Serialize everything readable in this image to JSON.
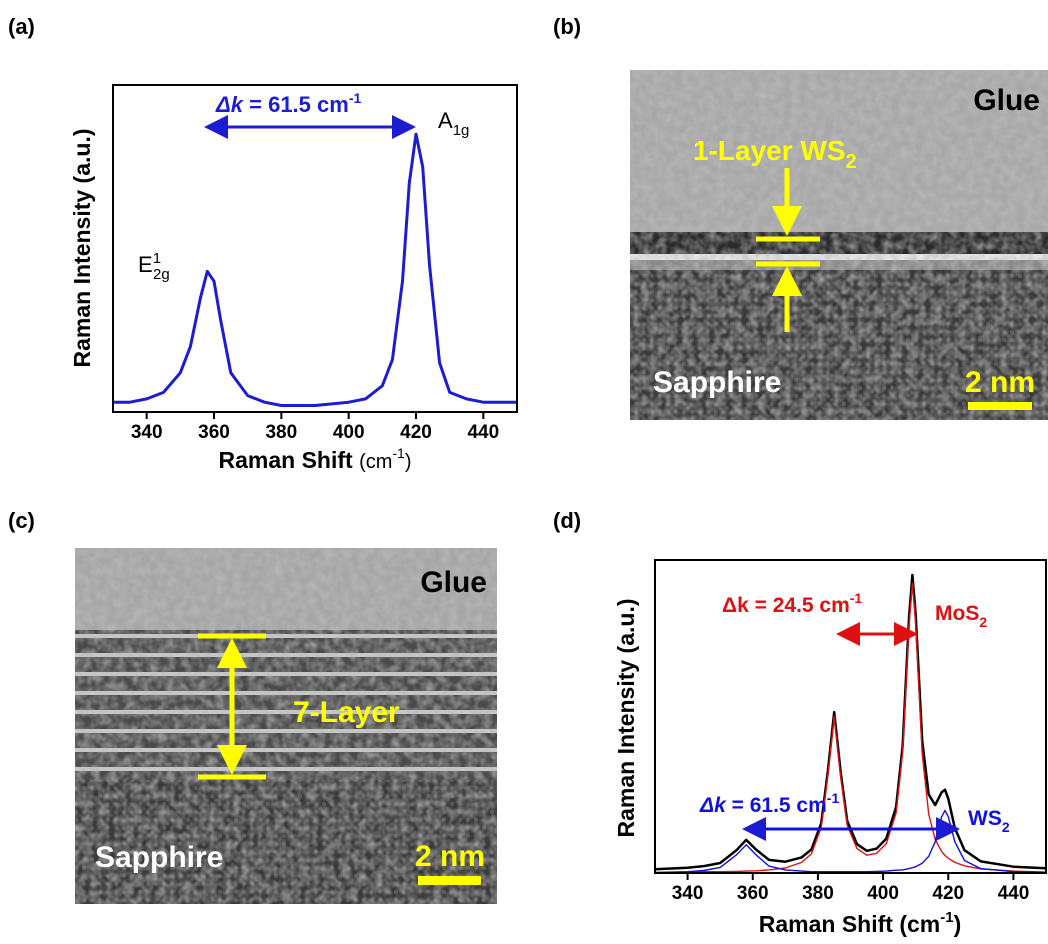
{
  "panel_labels": [
    "(a)",
    "(b)",
    "(c)",
    "(d)"
  ],
  "chart_data": [
    {
      "type": "line",
      "xlabel": [
        "Raman Shift ",
        "(cm",
        "-1",
        ")"
      ],
      "ylabel": "Raman Intensity (a.u.)",
      "x": [
        330,
        335,
        340,
        345,
        350,
        353,
        356,
        358,
        360,
        362,
        365,
        370,
        375,
        380,
        390,
        400,
        405,
        410,
        413,
        416,
        418,
        420,
        422,
        424,
        427,
        430,
        435,
        440,
        445,
        450
      ],
      "values": [
        3,
        3,
        4,
        6,
        12,
        20,
        35,
        43,
        40,
        28,
        12,
        5,
        3,
        2,
        2,
        3,
        4,
        8,
        16,
        40,
        70,
        85,
        75,
        45,
        15,
        6,
        4,
        3,
        3,
        3
      ],
      "color": "#1c1cd2",
      "xlim": [
        330,
        450
      ],
      "ylim": [
        0,
        100
      ],
      "xticks": [
        340,
        360,
        380,
        400,
        420,
        440
      ],
      "annotations": [
        {
          "parts": [
            "Δk",
            " = 61.5 cm",
            "-1"
          ]
        },
        {
          "parts": [
            "A",
            "1g"
          ]
        },
        {
          "parts": [
            "E",
            "1",
            "2g"
          ]
        }
      ]
    },
    {
      "type": "line",
      "xlabel": [
        "Raman Shift (cm",
        "-1",
        ")"
      ],
      "ylabel": "Raman Intensity (a.u.)",
      "x": [
        330,
        340,
        345,
        350,
        355,
        358,
        361,
        365,
        370,
        375,
        378,
        381,
        383,
        385,
        387,
        389,
        392,
        395,
        398,
        401,
        404,
        406,
        408,
        409,
        410,
        412,
        414,
        416,
        418,
        419,
        420,
        422,
        425,
        430,
        440,
        450
      ],
      "series": [
        {
          "color": "#000000",
          "values": [
            1.2,
            1.7,
            2.2,
            3.2,
            7.3,
            10.6,
            7.5,
            4.2,
            3.6,
            5,
            7.5,
            15.9,
            32.1,
            51.4,
            32.1,
            16.6,
            9.2,
            7.1,
            7.8,
            11,
            21.1,
            40.4,
            82,
            95.2,
            82.5,
            42.2,
            25.1,
            21.7,
            25.8,
            26.6,
            23.7,
            14.4,
            7.3,
            3.7,
            2,
            1.5
          ]
        },
        {
          "color": "#e01010",
          "values": [
            0,
            0.3,
            0.4,
            0.4,
            0.5,
            0.6,
            0.7,
            1,
            1.6,
            3.4,
            6.1,
            14.5,
            30.7,
            50,
            30.7,
            15.2,
            7.8,
            5.7,
            6.3,
            9.4,
            19.2,
            38.4,
            79.6,
            92.5,
            79.5,
            38.1,
            18.8,
            10.7,
            6.8,
            5.6,
            4.7,
            3.4,
            2.3,
            1.3,
            0.6,
            0.3
          ]
        },
        {
          "color": "#1010e0",
          "values": [
            0.2,
            0.4,
            0.8,
            1.8,
            5.8,
            9,
            5.8,
            2.2,
            1,
            0.6,
            0.4,
            0.4,
            0.4,
            0.4,
            0.4,
            0.4,
            0.4,
            0.4,
            0.5,
            0.6,
            0.9,
            1,
            1.4,
            1.7,
            2,
            3.1,
            5.3,
            10,
            18,
            20,
            18,
            10,
            4,
            1.4,
            0.4,
            0.2
          ]
        }
      ],
      "xlim": [
        330,
        450
      ],
      "ylim": [
        0,
        100
      ],
      "xticks": [
        340,
        360,
        380,
        400,
        420,
        440
      ],
      "annotations": [
        {
          "parts": [
            "Δk = 24.5 cm",
            "-1"
          ]
        },
        {
          "parts": [
            "MoS",
            "2"
          ]
        },
        {
          "parts": [
            "WS",
            "2"
          ]
        },
        {
          "parts": [
            "Δk",
            " = 61.5 cm",
            "-1"
          ]
        }
      ]
    }
  ],
  "images": [
    {
      "top": "Glue",
      "layer": [
        "1-Layer WS",
        "2"
      ],
      "bottom": "Sapphire",
      "scale": "2 nm"
    },
    {
      "top": "Glue",
      "layer": "7-Layer",
      "bottom": "Sapphire",
      "scale": "2 nm"
    }
  ]
}
